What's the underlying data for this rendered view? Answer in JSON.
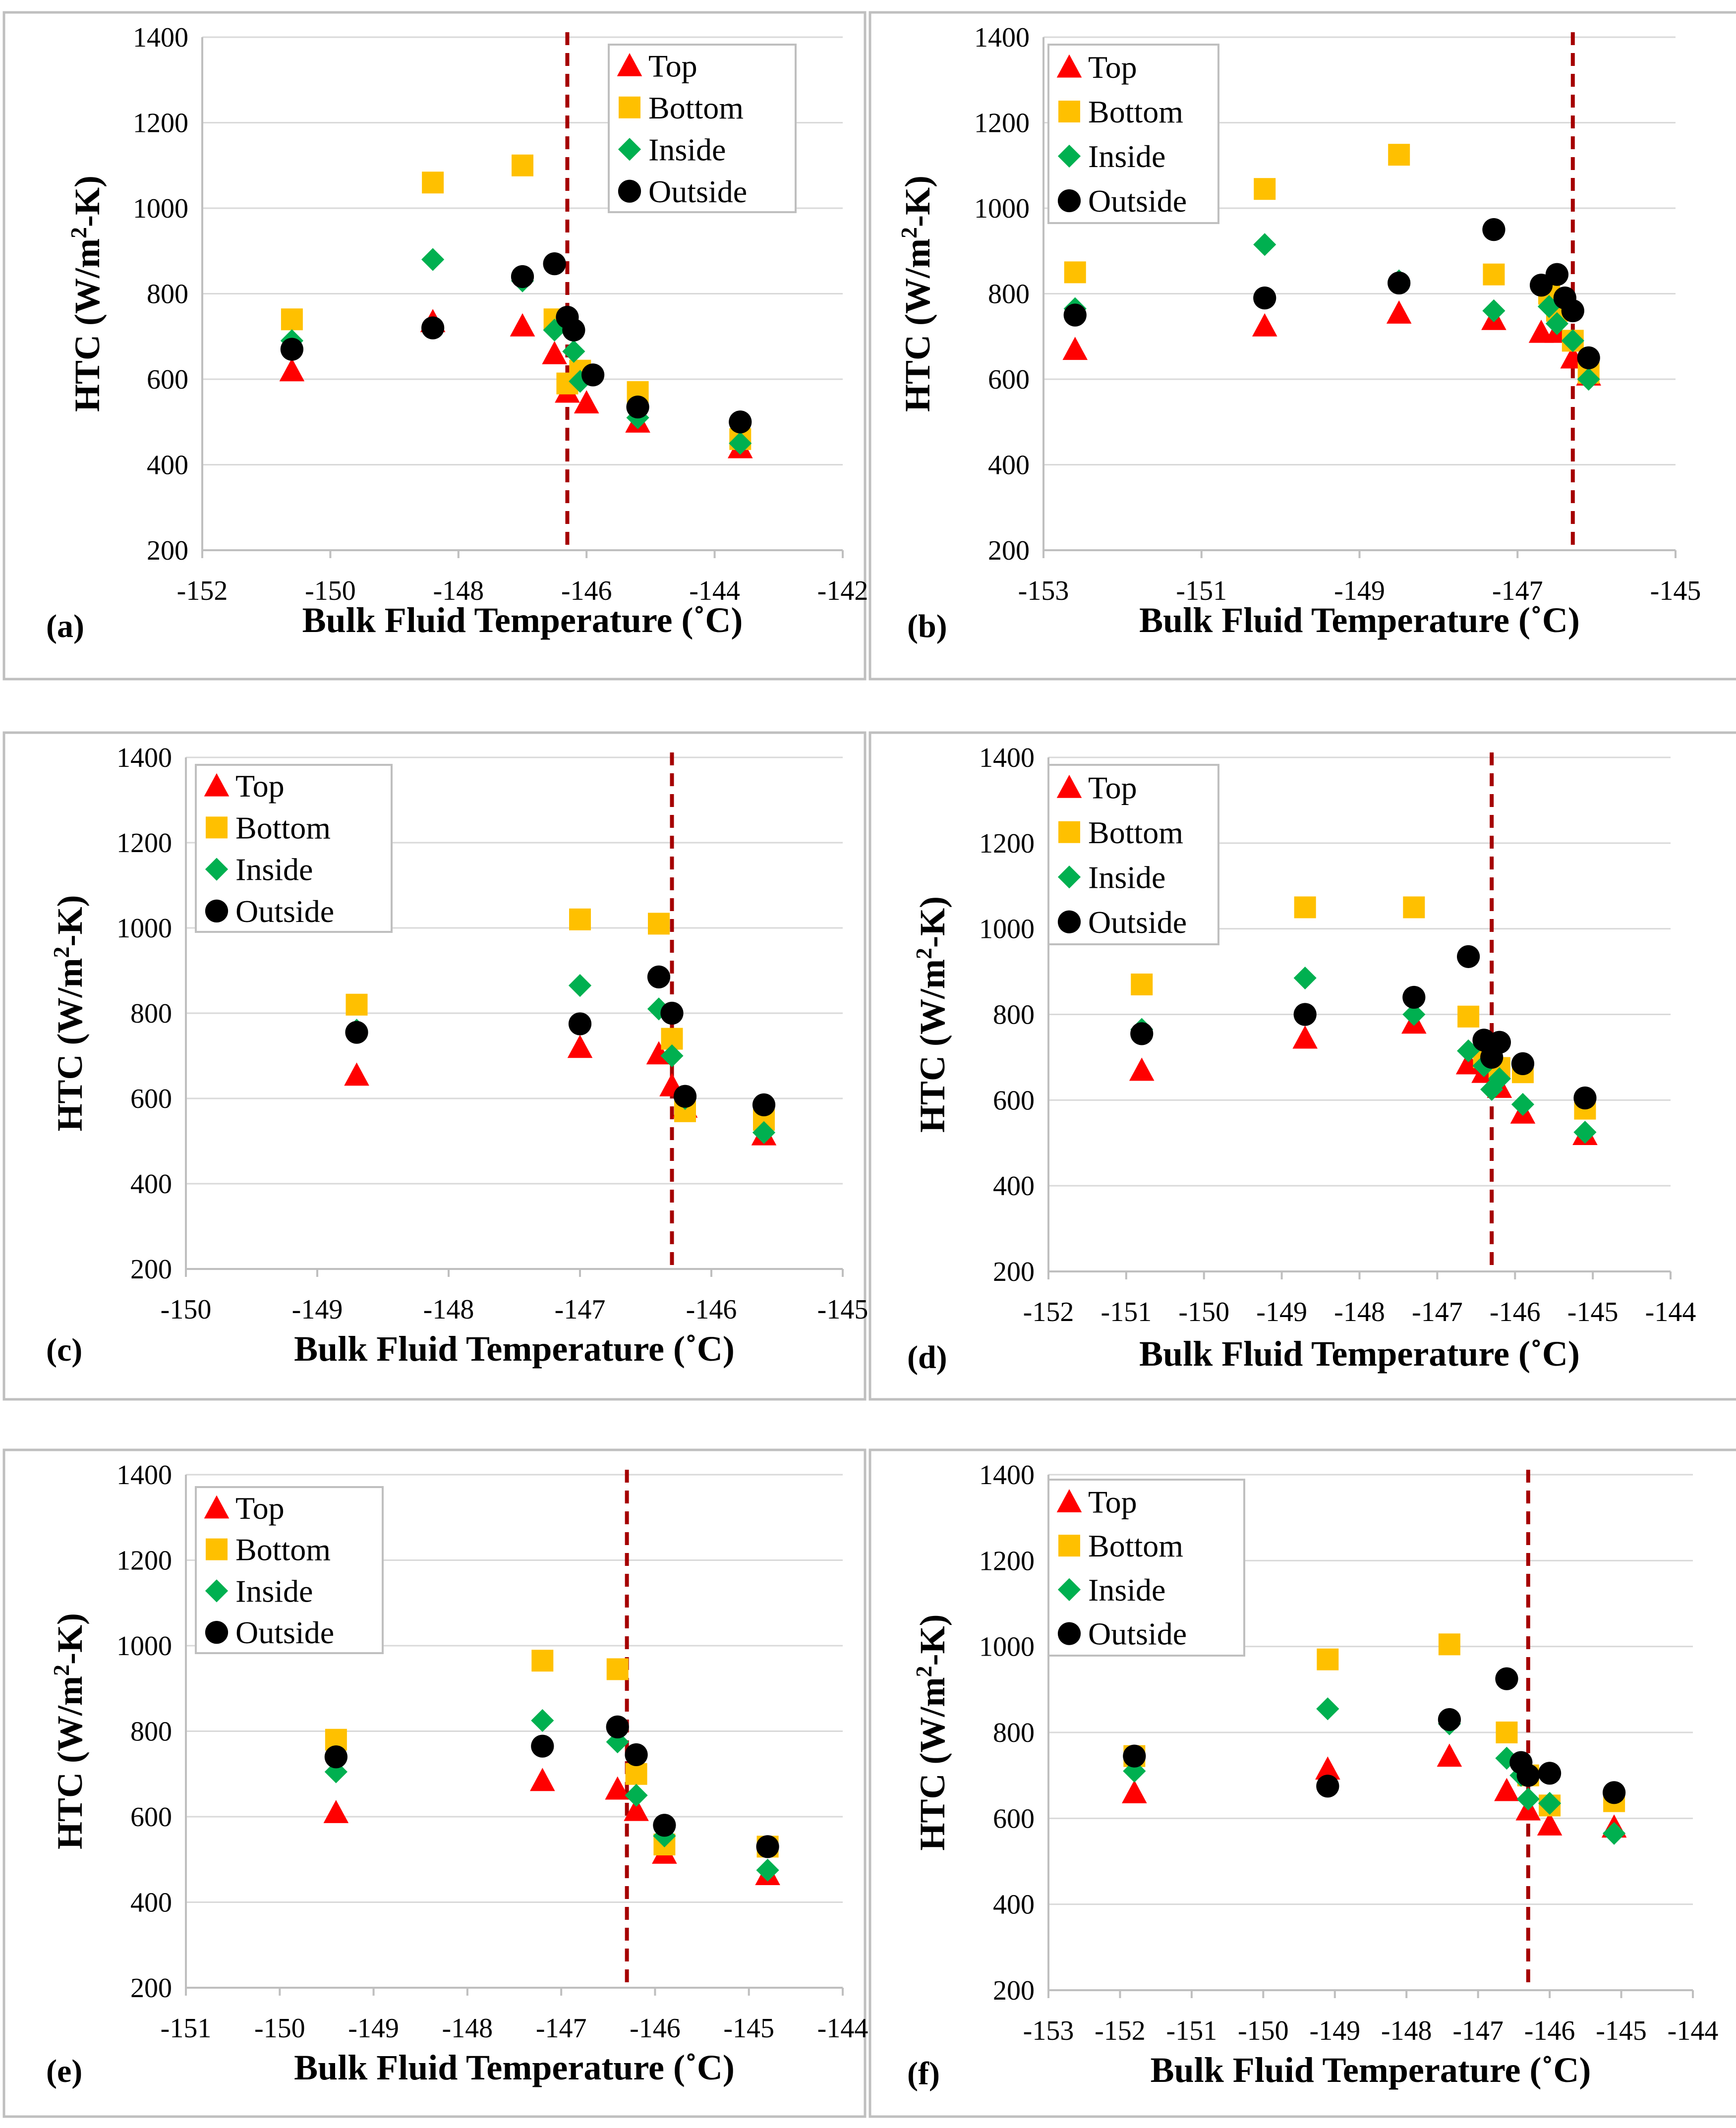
{
  "chart_data": [
    {
      "type": "scatter",
      "panel_label": "(a)",
      "xlabel": "Bulk Fluid Temperature (˚C)",
      "ylabel_parts": [
        "HTC (W/m",
        "2",
        "-K)"
      ],
      "xlim": [
        -152,
        -142
      ],
      "ylim": [
        200,
        1400
      ],
      "xticks": [
        -152,
        -150,
        -148,
        -146,
        -144,
        -142
      ],
      "yticks": [
        200,
        400,
        600,
        800,
        1000,
        1200,
        1400
      ],
      "legend_position": "top-right",
      "threshold_x": -146.3,
      "series": [
        {
          "name": "Top",
          "x": [
            -150.6,
            -148.4,
            -147.0,
            -146.5,
            -146.3,
            -146.0,
            -145.2,
            -143.6
          ],
          "y": [
            620,
            735,
            725,
            660,
            570,
            545,
            500,
            440
          ]
        },
        {
          "name": "Bottom",
          "x": [
            -150.6,
            -148.4,
            -147.0,
            -146.5,
            -146.3,
            -146.1,
            -145.2,
            -143.6
          ],
          "y": [
            740,
            1060,
            1100,
            740,
            590,
            620,
            570,
            460
          ]
        },
        {
          "name": "Inside",
          "x": [
            -150.6,
            -148.4,
            -147.0,
            -146.5,
            -146.2,
            -146.1,
            -145.2,
            -143.6
          ],
          "y": [
            690,
            880,
            830,
            715,
            665,
            595,
            510,
            450
          ]
        },
        {
          "name": "Outside",
          "x": [
            -150.6,
            -148.4,
            -147.0,
            -146.5,
            -146.3,
            -146.2,
            -145.9,
            -145.2,
            -143.6
          ],
          "y": [
            670,
            720,
            840,
            870,
            745,
            715,
            610,
            535,
            500
          ]
        }
      ]
    },
    {
      "type": "scatter",
      "panel_label": "(b)",
      "xlabel": "Bulk Fluid Temperature (˚C)",
      "ylabel_parts": [
        "HTC (W/m",
        "2",
        "-K)"
      ],
      "xlim": [
        -153,
        -145
      ],
      "ylim": [
        200,
        1400
      ],
      "xticks": [
        -153,
        -151,
        -149,
        -147,
        -145
      ],
      "yticks": [
        200,
        400,
        600,
        800,
        1000,
        1200,
        1400
      ],
      "legend_position": "top-left",
      "threshold_x": -146.3,
      "series": [
        {
          "name": "Top",
          "x": [
            -152.6,
            -150.2,
            -148.5,
            -147.3,
            -146.7,
            -146.5,
            -146.3,
            -146.1
          ],
          "y": [
            670,
            725,
            755,
            740,
            710,
            710,
            650,
            610
          ]
        },
        {
          "name": "Bottom",
          "x": [
            -152.6,
            -150.2,
            -148.5,
            -147.3,
            -146.6,
            -146.5,
            -146.3,
            -146.1
          ],
          "y": [
            850,
            1045,
            1125,
            845,
            800,
            760,
            690,
            615
          ]
        },
        {
          "name": "Inside",
          "x": [
            -152.6,
            -150.2,
            -148.5,
            -147.3,
            -146.6,
            -146.5,
            -146.3,
            -146.1
          ],
          "y": [
            765,
            915,
            830,
            760,
            770,
            730,
            690,
            600
          ]
        },
        {
          "name": "Outside",
          "x": [
            -152.6,
            -150.2,
            -148.5,
            -147.3,
            -146.7,
            -146.5,
            -146.4,
            -146.3,
            -146.1
          ],
          "y": [
            750,
            790,
            825,
            950,
            820,
            845,
            790,
            760,
            650
          ]
        }
      ]
    },
    {
      "type": "scatter",
      "panel_label": "(c)",
      "xlabel": "Bulk Fluid Temperature (˚C)",
      "ylabel_parts": [
        "HTC (W/m",
        "2",
        "-K)"
      ],
      "xlim": [
        -150,
        -145
      ],
      "ylim": [
        200,
        1400
      ],
      "xticks": [
        -150,
        -149,
        -148,
        -147,
        -146,
        -145
      ],
      "yticks": [
        200,
        400,
        600,
        800,
        1000,
        1200,
        1400
      ],
      "legend_position": "top-left",
      "threshold_x": -146.3,
      "series": [
        {
          "name": "Top",
          "x": [
            -148.7,
            -147.0,
            -146.4,
            -146.3,
            -146.2,
            -145.6
          ],
          "y": [
            655,
            720,
            705,
            630,
            580,
            515
          ]
        },
        {
          "name": "Bottom",
          "x": [
            -148.7,
            -147.0,
            -146.4,
            -146.3,
            -146.2,
            -145.6
          ],
          "y": [
            820,
            1020,
            1010,
            740,
            570,
            550
          ]
        },
        {
          "name": "Inside",
          "x": [
            -148.7,
            -147.0,
            -146.4,
            -146.3,
            -146.2,
            -145.6
          ],
          "y": [
            760,
            865,
            810,
            700,
            600,
            520
          ]
        },
        {
          "name": "Outside",
          "x": [
            -148.7,
            -147.0,
            -146.4,
            -146.3,
            -146.2,
            -145.6
          ],
          "y": [
            755,
            775,
            885,
            800,
            605,
            585
          ]
        }
      ]
    },
    {
      "type": "scatter",
      "panel_label": "(d)",
      "xlabel": "Bulk Fluid Temperature (˚C)",
      "ylabel_parts": [
        "HTC (W/m",
        "2",
        "-K)"
      ],
      "xlim": [
        -152,
        -144
      ],
      "ylim": [
        200,
        1400
      ],
      "xticks": [
        -152,
        -151,
        -150,
        -149,
        -148,
        -147,
        -146,
        -145,
        -144
      ],
      "yticks": [
        200,
        400,
        600,
        800,
        1000,
        1200,
        1400
      ],
      "legend_position": "top-left",
      "threshold_x": -146.3,
      "series": [
        {
          "name": "Top",
          "x": [
            -150.8,
            -148.7,
            -147.3,
            -146.6,
            -146.4,
            -146.2,
            -145.9,
            -145.1
          ],
          "y": [
            670,
            745,
            780,
            685,
            665,
            630,
            570,
            520
          ]
        },
        {
          "name": "Bottom",
          "x": [
            -150.8,
            -148.7,
            -147.3,
            -146.6,
            -146.4,
            -146.2,
            -145.9,
            -145.1
          ],
          "y": [
            870,
            1050,
            1050,
            795,
            700,
            675,
            665,
            580
          ]
        },
        {
          "name": "Inside",
          "x": [
            -150.8,
            -148.7,
            -147.3,
            -146.6,
            -146.4,
            -146.3,
            -146.2,
            -145.9,
            -145.1
          ],
          "y": [
            765,
            885,
            800,
            715,
            680,
            625,
            650,
            590,
            525
          ]
        },
        {
          "name": "Outside",
          "x": [
            -150.8,
            -148.7,
            -147.3,
            -146.6,
            -146.4,
            -146.3,
            -146.2,
            -145.9,
            -145.1
          ],
          "y": [
            755,
            800,
            840,
            935,
            740,
            700,
            735,
            685,
            605
          ]
        }
      ]
    },
    {
      "type": "scatter",
      "panel_label": "(e)",
      "xlabel": "Bulk Fluid Temperature (˚C)",
      "ylabel_parts": [
        "HTC (W/m",
        "2",
        "-K)"
      ],
      "xlim": [
        -151,
        -144
      ],
      "ylim": [
        200,
        1400
      ],
      "xticks": [
        -151,
        -150,
        -149,
        -148,
        -147,
        -146,
        -145,
        -144
      ],
      "yticks": [
        200,
        400,
        600,
        800,
        1000,
        1200,
        1400
      ],
      "legend_position": "top-left",
      "threshold_x": -146.3,
      "series": [
        {
          "name": "Top",
          "x": [
            -149.4,
            -147.2,
            -146.4,
            -146.2,
            -145.9,
            -144.8
          ],
          "y": [
            610,
            685,
            665,
            615,
            515,
            465
          ]
        },
        {
          "name": "Bottom",
          "x": [
            -149.4,
            -147.2,
            -146.4,
            -146.2,
            -145.9,
            -144.8
          ],
          "y": [
            780,
            965,
            945,
            700,
            535,
            530
          ]
        },
        {
          "name": "Inside",
          "x": [
            -149.4,
            -147.2,
            -146.4,
            -146.2,
            -145.9,
            -144.8
          ],
          "y": [
            705,
            825,
            775,
            650,
            555,
            475
          ]
        },
        {
          "name": "Outside",
          "x": [
            -149.4,
            -147.2,
            -146.4,
            -146.2,
            -145.9,
            -144.8
          ],
          "y": [
            740,
            765,
            810,
            745,
            580,
            530
          ]
        }
      ]
    },
    {
      "type": "scatter",
      "panel_label": "(f)",
      "xlabel": "Bulk Fluid Temperature (˚C)",
      "ylabel_parts": [
        "HTC (W/m",
        "2",
        "-K)"
      ],
      "xlim": [
        -153,
        -144
      ],
      "ylim": [
        200,
        1400
      ],
      "xticks": [
        -153,
        -152,
        -151,
        -150,
        -149,
        -148,
        -147,
        -146,
        -145,
        -144
      ],
      "yticks": [
        200,
        400,
        600,
        800,
        1000,
        1200,
        1400
      ],
      "legend_position": "top-left",
      "threshold_x": -146.3,
      "series": [
        {
          "name": "Top",
          "x": [
            -151.8,
            -149.1,
            -147.4,
            -146.6,
            -146.3,
            -146.0,
            -145.1
          ],
          "y": [
            660,
            715,
            745,
            665,
            620,
            585,
            580
          ]
        },
        {
          "name": "Bottom",
          "x": [
            -151.8,
            -149.1,
            -147.4,
            -146.6,
            -146.3,
            -146.0,
            -145.1
          ],
          "y": [
            745,
            970,
            1005,
            800,
            700,
            630,
            640
          ]
        },
        {
          "name": "Inside",
          "x": [
            -151.8,
            -149.1,
            -147.4,
            -146.6,
            -146.4,
            -146.3,
            -146.0,
            -145.1
          ],
          "y": [
            710,
            855,
            820,
            740,
            700,
            645,
            635,
            565
          ]
        },
        {
          "name": "Outside",
          "x": [
            -151.8,
            -149.1,
            -147.4,
            -146.6,
            -146.4,
            -146.3,
            -146.0,
            -145.1
          ],
          "y": [
            745,
            675,
            830,
            925,
            730,
            700,
            705,
            660
          ]
        }
      ]
    }
  ],
  "colors": {
    "top": "#ff0000",
    "bottom": "#ffc000",
    "inside": "#00b050",
    "outside": "#000000",
    "threshold_line": "#a50000"
  }
}
